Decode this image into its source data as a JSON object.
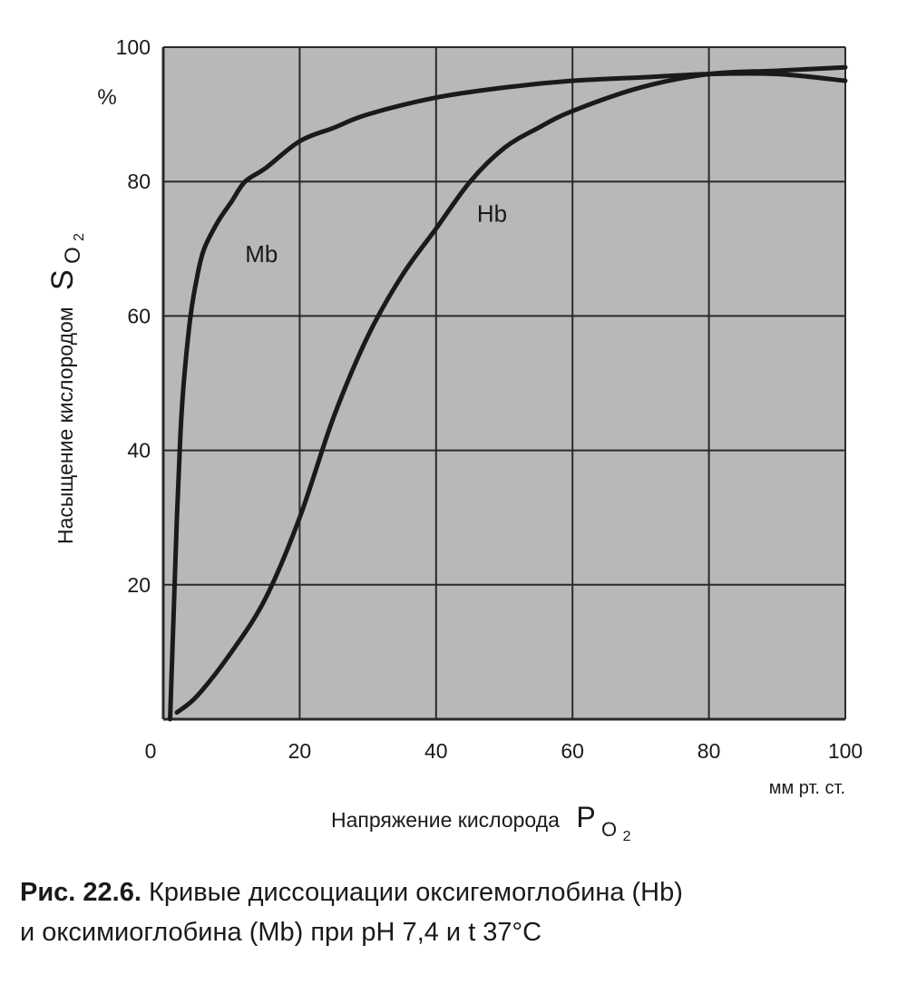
{
  "chart_data": {
    "type": "line",
    "xlim": [
      0,
      100
    ],
    "ylim": [
      0,
      100
    ],
    "xticks": [
      "0",
      "20",
      "40",
      "60",
      "80",
      "100"
    ],
    "yticks": [
      "20",
      "40",
      "60",
      "80",
      "100"
    ],
    "grid": true,
    "colors": {
      "plot_bg": "#b8b8b8",
      "grid": "#2a2a2a",
      "line": "#1a1a1a"
    },
    "ylabel": {
      "text": "Насыщение кислородом",
      "symbol": "S",
      "subscript": "O",
      "sub2": "2"
    },
    "yunit": "%",
    "xlabel": {
      "text": "Напряжение кислорода",
      "symbol": "P",
      "subscript": "O",
      "sub2": "2"
    },
    "xunit": "мм рт. ст.",
    "series": [
      {
        "name": "Mb",
        "x": [
          1,
          1.5,
          2,
          2.5,
          3,
          4,
          5,
          6,
          8,
          10,
          12,
          15,
          20,
          25,
          30,
          40,
          50,
          60,
          70,
          80,
          90,
          100
        ],
        "y": [
          0,
          15,
          30,
          42,
          50,
          60,
          66,
          70,
          74,
          77,
          80,
          82,
          86,
          88,
          90,
          92.5,
          94,
          95,
          95.5,
          96,
          96,
          95
        ]
      },
      {
        "name": "Hb",
        "x": [
          2,
          5,
          10,
          15,
          20,
          25,
          30,
          35,
          40,
          45,
          50,
          55,
          60,
          70,
          80,
          90,
          100
        ],
        "y": [
          1,
          3.5,
          10,
          18,
          30,
          45,
          57,
          66,
          73,
          80,
          85,
          88,
          90.5,
          94,
          96,
          96.5,
          97
        ]
      }
    ],
    "annotations": [
      {
        "text": "Mb",
        "x": 12,
        "y": 68
      },
      {
        "text": "Hb",
        "x": 46,
        "y": 74
      }
    ]
  },
  "caption": {
    "lead": "Рис. 22.6.",
    "line1": "Кривые диссоциации оксигемоглобина (Hb)",
    "line2": "и оксимиоглобина (Mb) при pH 7,4 и t 37°C"
  }
}
